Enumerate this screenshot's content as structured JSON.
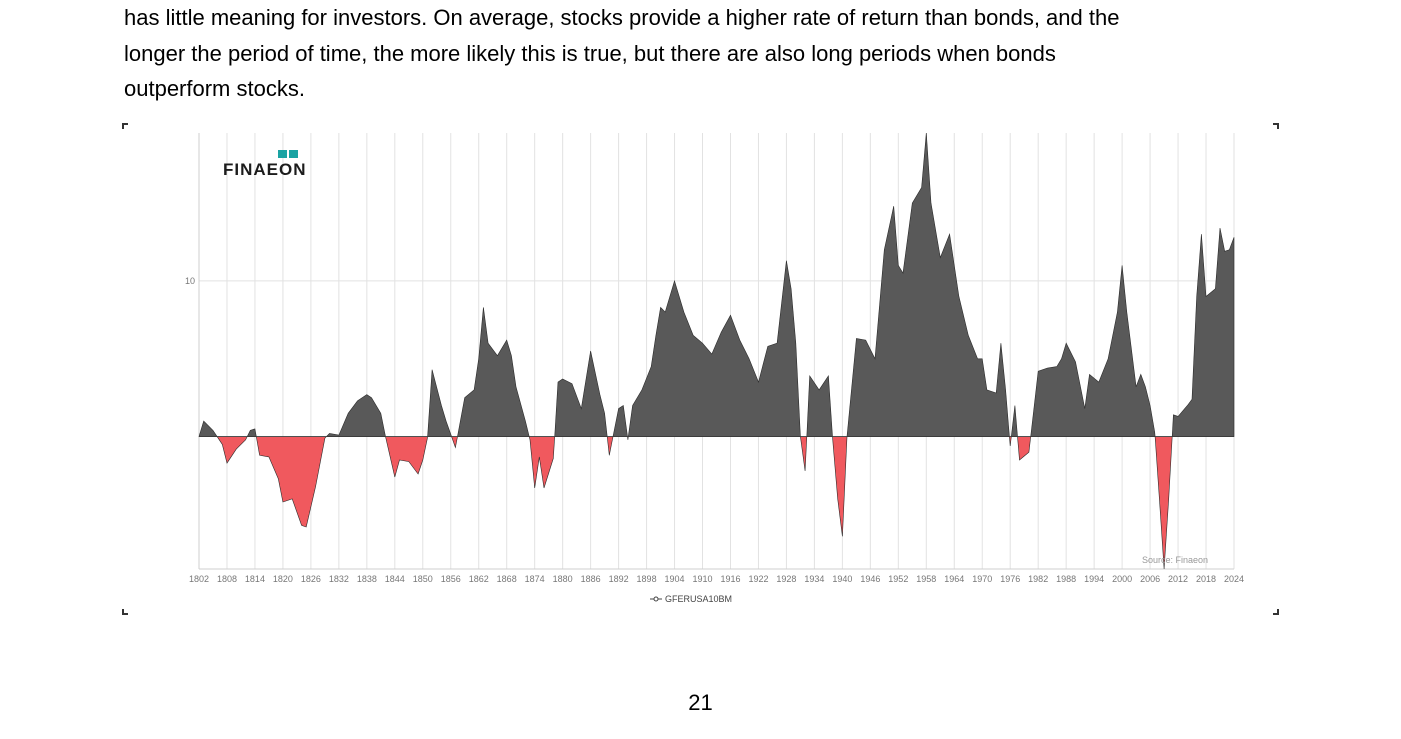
{
  "document": {
    "paragraph_lines": [
      "has little meaning for investors. On average, stocks provide a higher rate of return than bonds, and the",
      "longer the period of time, the more likely this is true, but there are also long periods when bonds",
      "outperform stocks."
    ],
    "page_number": "21"
  },
  "figure": {
    "logo_text": "FINAEON",
    "source_text": "Source: Finaeon",
    "legend_label": "GFERUSA10BM",
    "colors": {
      "positive": "#595959",
      "negative": "#f0595e",
      "logo_teal": "#1aa3a3"
    }
  },
  "chart_data": {
    "type": "area",
    "title": "",
    "xlabel": "",
    "ylabel": "",
    "xlim": [
      1802,
      2024
    ],
    "ylim": [
      -8.5,
      19.5
    ],
    "y_ticks": [
      "10"
    ],
    "x_ticks": [
      "1802",
      "1808",
      "1814",
      "1820",
      "1826",
      "1832",
      "1838",
      "1844",
      "1850",
      "1856",
      "1862",
      "1868",
      "1874",
      "1880",
      "1886",
      "1892",
      "1898",
      "1904",
      "1910",
      "1916",
      "1922",
      "1928",
      "1934",
      "1940",
      "1946",
      "1952",
      "1958",
      "1964",
      "1970",
      "1976",
      "1982",
      "1988",
      "1994",
      "2000",
      "2006",
      "2012",
      "2018",
      "2024"
    ],
    "series": [
      {
        "name": "GFERUSA10BM",
        "x": [
          1802,
          1803,
          1805,
          1807,
          1808,
          1810,
          1812,
          1813,
          1814,
          1815,
          1817,
          1819,
          1820,
          1822,
          1824,
          1825,
          1827,
          1829,
          1830,
          1832,
          1834,
          1836,
          1838,
          1839,
          1841,
          1842,
          1844,
          1845,
          1847,
          1849,
          1850,
          1851,
          1852,
          1854,
          1855,
          1857,
          1859,
          1861,
          1862,
          1863,
          1864,
          1866,
          1868,
          1869,
          1870,
          1872,
          1873,
          1874,
          1875,
          1876,
          1878,
          1879,
          1880,
          1882,
          1884,
          1886,
          1888,
          1889,
          1890,
          1892,
          1893,
          1894,
          1895,
          1897,
          1899,
          1900,
          1901,
          1902,
          1904,
          1906,
          1908,
          1910,
          1912,
          1914,
          1916,
          1918,
          1920,
          1922,
          1924,
          1926,
          1928,
          1929,
          1930,
          1931,
          1932,
          1933,
          1935,
          1937,
          1938,
          1939,
          1940,
          1941,
          1943,
          1945,
          1947,
          1949,
          1951,
          1952,
          1953,
          1955,
          1957,
          1958,
          1959,
          1961,
          1963,
          1965,
          1967,
          1969,
          1970,
          1971,
          1973,
          1974,
          1975,
          1976,
          1977,
          1978,
          1980,
          1982,
          1984,
          1986,
          1987,
          1988,
          1990,
          1992,
          1993,
          1995,
          1997,
          1999,
          2000,
          2001,
          2003,
          2004,
          2005,
          2006,
          2007,
          2008,
          2009,
          2010,
          2011,
          2012,
          2014,
          2015,
          2016,
          2017,
          2018,
          2020,
          2021,
          2022,
          2023,
          2024
        ],
        "y": [
          0.0,
          1.0,
          0.4,
          -0.5,
          -1.7,
          -0.8,
          -0.2,
          0.4,
          0.5,
          -1.2,
          -1.3,
          -2.7,
          -4.2,
          -4.0,
          -5.7,
          -5.8,
          -3.2,
          -0.1,
          0.2,
          0.1,
          1.5,
          2.3,
          2.7,
          2.5,
          1.5,
          0.0,
          -2.6,
          -1.5,
          -1.6,
          -2.4,
          -1.5,
          -0.1,
          4.3,
          2.0,
          1.0,
          -0.7,
          2.5,
          3.0,
          5.0,
          8.3,
          6.0,
          5.2,
          6.2,
          5.2,
          3.2,
          1.0,
          -0.2,
          -3.3,
          -1.3,
          -3.3,
          -1.4,
          3.5,
          3.7,
          3.4,
          1.8,
          5.5,
          2.7,
          1.5,
          -1.2,
          1.8,
          2.0,
          -0.2,
          2.0,
          3.0,
          4.5,
          6.5,
          8.3,
          8.0,
          10.0,
          8.0,
          6.5,
          6.0,
          5.3,
          6.7,
          7.8,
          6.2,
          5.0,
          3.5,
          5.8,
          6.0,
          11.3,
          9.5,
          6.0,
          0.0,
          -2.2,
          3.9,
          3.0,
          3.9,
          -0.5,
          -4.0,
          -6.4,
          0.0,
          6.3,
          6.2,
          5.0,
          12.0,
          14.8,
          11.0,
          10.5,
          15.0,
          16.0,
          19.5,
          15.0,
          11.5,
          13.0,
          9.0,
          6.5,
          5.0,
          5.0,
          3.0,
          2.8,
          6.0,
          3.0,
          -0.6,
          2.0,
          -1.5,
          -1.0,
          4.2,
          4.4,
          4.5,
          5.0,
          6.0,
          4.8,
          1.8,
          4.0,
          3.5,
          5.0,
          8.0,
          11.0,
          8.0,
          3.2,
          4.0,
          3.2,
          2.0,
          0.3,
          -4.0,
          -8.5,
          -4.0,
          1.4,
          1.3,
          2.0,
          2.4,
          9.0,
          13.0,
          9.0,
          9.5,
          13.4,
          11.9,
          12.0,
          12.8
        ]
      }
    ],
    "grid": "vertical",
    "legend_position": "bottom-center"
  }
}
